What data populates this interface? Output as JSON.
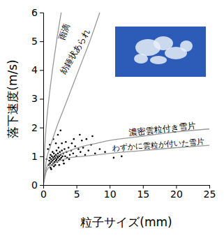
{
  "chart_data": {
    "type": "scatter",
    "x_label": "粒子サイズ(mm)",
    "y_label": "落下速度(m/s)",
    "xlim": [
      0,
      25
    ],
    "ylim": [
      0,
      6
    ],
    "xticks": [
      0,
      5,
      10,
      15,
      20,
      25
    ],
    "yticks": [
      0,
      1,
      2,
      3,
      4,
      5,
      6
    ],
    "grid": false,
    "series": [
      {
        "type": "scatter",
        "color": "#000000",
        "marker": "circle",
        "x": [
          0.8,
          0.9,
          1.0,
          1.0,
          1.1,
          1.1,
          1.2,
          1.2,
          1.3,
          1.3,
          1.4,
          1.4,
          1.5,
          1.5,
          1.6,
          1.6,
          1.7,
          1.7,
          1.8,
          1.8,
          1.9,
          1.9,
          2.0,
          2.0,
          2.1,
          2.1,
          2.2,
          2.2,
          2.3,
          2.3,
          2.4,
          2.5,
          2.5,
          2.6,
          2.7,
          2.8,
          2.9,
          3.0,
          3.0,
          3.2,
          3.3,
          3.5,
          3.6,
          3.8,
          4.0,
          4.2,
          4.5,
          4.8,
          5.0,
          5.3,
          5.6,
          6.0,
          6.3,
          6.8,
          7.2,
          7.8,
          8.5,
          9.3,
          10.6,
          11.8,
          1.5,
          2.2,
          2.6,
          3.4,
          4.6,
          5.8,
          7.4,
          0.7,
          1.0,
          2.8,
          1.2,
          1.6,
          2.4,
          3.1,
          0.5,
          1.9,
          3.9,
          4.3,
          5.5,
          6.5
        ],
        "values": [
          0.7,
          0.85,
          0.75,
          0.95,
          0.6,
          1.05,
          0.8,
          0.9,
          0.7,
          1.0,
          0.85,
          1.15,
          0.75,
          0.95,
          0.9,
          1.1,
          0.8,
          1.0,
          0.7,
          0.95,
          1.05,
          0.85,
          0.9,
          1.2,
          0.8,
          1.0,
          0.95,
          1.1,
          0.85,
          1.3,
          1.0,
          0.9,
          1.15,
          1.05,
          0.95,
          1.2,
          1.0,
          1.1,
          0.85,
          1.25,
          1.0,
          1.15,
          0.95,
          1.3,
          1.05,
          1.2,
          1.1,
          1.35,
          1.0,
          1.25,
          1.15,
          1.3,
          1.05,
          1.2,
          1.4,
          1.1,
          1.25,
          1.15,
          0.95,
          1.0,
          1.6,
          1.75,
          1.9,
          1.5,
          1.6,
          1.55,
          1.7,
          1.25,
          1.4,
          1.45,
          0.55,
          0.65,
          0.7,
          0.75,
          0.9,
          1.45,
          0.9,
          1.45,
          1.75,
          1.6
        ]
      },
      {
        "name": "雨滴",
        "type": "line",
        "color": "#999999",
        "line_style": "solid",
        "x": [
          0,
          0.2,
          0.5,
          1,
          1.5,
          2,
          2.7
        ],
        "values": [
          0,
          1.2,
          2.2,
          3.3,
          4.2,
          5.0,
          6.0
        ]
      },
      {
        "name": "紡錘状あられ",
        "type": "line",
        "color": "#999999",
        "line_style": "solid",
        "x": [
          0,
          0.5,
          1,
          2,
          3,
          4,
          5,
          6,
          7,
          8.5
        ],
        "values": [
          0,
          0.9,
          1.3,
          2.0,
          2.6,
          3.2,
          3.8,
          4.4,
          5.0,
          6.0
        ]
      },
      {
        "name": "濃密雲粒付き雪片",
        "type": "line",
        "color": "#999999",
        "line_style": "solid",
        "x": [
          0,
          0.5,
          1,
          2,
          4,
          6,
          8,
          10,
          15,
          20,
          25
        ],
        "values": [
          0,
          0.6,
          0.8,
          1.0,
          1.2,
          1.35,
          1.45,
          1.55,
          1.7,
          1.85,
          1.95
        ]
      },
      {
        "name": "わずかに雲粒が付いた雪片",
        "type": "line",
        "color": "#999999",
        "line_style": "solid",
        "x": [
          0,
          0.5,
          1,
          2,
          4,
          6,
          8,
          10,
          15,
          20,
          25
        ],
        "values": [
          0,
          0.5,
          0.65,
          0.8,
          0.95,
          1.0,
          1.05,
          1.1,
          1.2,
          1.3,
          1.38
        ]
      }
    ]
  }
}
